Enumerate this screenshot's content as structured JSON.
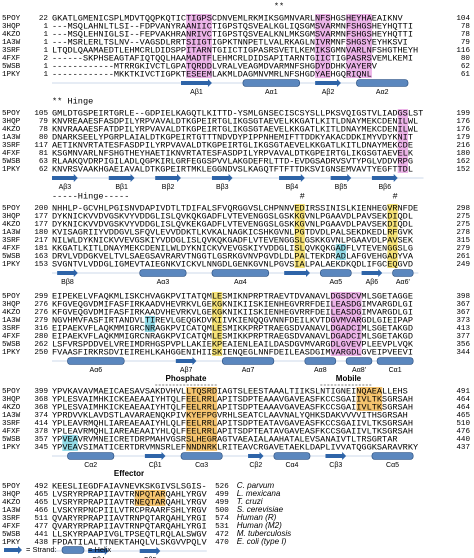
{
  "blocks": [
    {
      "annotations": [
        "**"
      ],
      "rows": [
        {
          "id": "5POY",
          "start": "22",
          "seq": "GKATLGMENICSPLMDVTQQPKQTICTIGPSCDNVEMLRKMIKSGMNVARLNFSHGSHEYHAEAIKNV",
          "end": "104"
        },
        {
          "id": "3HQP",
          "start": "1",
          "seq": "---MSQLAHNLTLSI--FDPVANYRAANIICTIGPSTQSVEALKGLIQSGMSVARMNFSHGSHEYHQTTI",
          "end": "78"
        },
        {
          "id": "4KZO",
          "start": "1",
          "seq": "---MSQLEHNIGLSI--FEPVAKHRANRIVCTIGPSTQSVEALKNLMKSGMSVARMNFSHGSHEYHQTTI",
          "end": "78"
        },
        {
          "id": "1A3W",
          "start": "1",
          "seq": "---MSRLERLTSLNV--VAGSDLRRTSIIGTIGPKTNNPETLVALRKAGLNIVRMNFSHGSYEYHKSVI",
          "end": "79"
        },
        {
          "id": "3SRF",
          "start": "1",
          "seq": "LTQDLQAAMAEDTLEHMCRLDIDSPPITARNTGIICTIGPASRSVETLKEMIKSGMNVARLNFSHGTHEYH",
          "end": "116"
        },
        {
          "id": "4FXF",
          "start": "2",
          "seq": "------SKPHSEAGTAFIQTQQLHAAMADTFLEHMCRLDIDSAPITARNTGIICTIGPASRSVEMLKEMI",
          "end": "80"
        },
        {
          "id": "5WSB",
          "start": "1",
          "seq": "------------MTRRGKIVCTLGPATQRDDLVRALVEAGMDVARMNFSHGDYDDHKVAYERV",
          "end": "62"
        },
        {
          "id": "1PKY",
          "start": "1",
          "seq": "------------MKKTKIVCTIGPKTESEEMLAKMLDAGMNVMRLNFSHGDYAEHGQRIQNL",
          "end": "61"
        }
      ],
      "ss": [
        "Aβ1",
        "Aα1",
        "Aβ2",
        "Aα2"
      ]
    },
    {
      "annotations": [
        "** Hinge"
      ],
      "rows": [
        {
          "id": "5POY",
          "start": "105",
          "seq": "GMLDTGSPEIRTGRLE--GDPIELKAGQTLKITTD-YSMLGNSECISCSYSLLPKSVQIGSTVLIADGSLST",
          "end": "199"
        },
        {
          "id": "3HQP",
          "start": "79",
          "seq": "KNVREAAESFASDPILYRPVAVALDTKGPEIRTGLIKGSGTAEVELKKGATLKITLDNAYMEKCDENILWL",
          "end": "176"
        },
        {
          "id": "4KZO",
          "start": "78",
          "seq": "KNVRAAAESFATDPILYRPVAVALDTKGPEIRTGLIKGSGTAEVELKKGATLKITLDNAYMEKCDENILWL",
          "end": "176"
        },
        {
          "id": "1A3W",
          "start": "80",
          "seq": "DNARKSEELYPGRPLAIALDTKGPEIRTGTTTNDVDYPIPPNHEMIFTTDDKYAKACDDKIMYVDYKNIT",
          "end": "179"
        },
        {
          "id": "3SRF",
          "start": "117",
          "seq": "AETIKNVRTATESFASDPILYRPVAVALDTKGPEIRTGLIKGSGTAEVELKKGATLKITLDNAYMEKCDE",
          "end": "216"
        },
        {
          "id": "4FXF",
          "start": "81",
          "seq": "KSGMNVARLNFSHGTHEYHAETIKNVRTATESFASDPILYRPVAVALDTKGPEIRTGLIKGSGTAEVELK",
          "end": "180"
        },
        {
          "id": "5WSB",
          "start": "63",
          "seq": "RLAAKQVDRPIGILADLQGPKIRLGRFEGGSPVVLAKGDEFRLTTD-EVDGSADRVSVTYPGLVDDVRPG",
          "end": "162"
        },
        {
          "id": "1PKY",
          "start": "62",
          "seq": "KNVRSVAAKHGAEIAVALDTKGPEIRTMKLEGGNDVSLKAGQTFTFTTDKSVIGNSEMVAVTYEGFTTDL",
          "end": "152"
        }
      ],
      "ss": [
        "Aβ3",
        "Bβ1",
        "Bβ2",
        "Bβ3",
        "Bβ4",
        "Bβ5",
        "Bβ6"
      ]
    },
    {
      "annotations": [
        "-----Hinge-----",
        "#",
        "#"
      ],
      "rows": [
        {
          "id": "5POY",
          "start": "200",
          "seq": "NHHLP-GCVHLPGISNVDAPIVDTLTDIFALSFVQRGGVSLCHPNNVEDIRSSINISLKIENHEGVRNFDE",
          "end": "298"
        },
        {
          "id": "3HQP",
          "start": "177",
          "seq": "DYKNICKVVDVGSKVYVDDGLISLQVKQKGADFLVTEVENGGSLGSKKGVNLPGAAVDLPAVSEKDIQDL",
          "end": "275"
        },
        {
          "id": "4KZO",
          "start": "177",
          "seq": "DYKNICKVVDVGSKVYVDDGLISLQVKEKGADFLVTEVENGGSLGSKKGVNLPGAAVDLPAVSEKDIQDL",
          "end": "275"
        },
        {
          "id": "1A3W",
          "start": "180",
          "seq": "KVISAGRIIYVDDGVLSFQVLEVVDDKTLKVKALNAGKICSHKGVNLPGTDVDLPALSEKDKEDLRFGVK",
          "end": "278"
        },
        {
          "id": "3SRF",
          "start": "217",
          "seq": "NILWLDYKNICKVVEVGSKIYVDDGLISLQVKQKGADFLVTEVENGGSLGSKKGVNLPGAAVDLPAVSEK",
          "end": "315"
        },
        {
          "id": "4FXF",
          "start": "181",
          "seq": "KKGATLKITLDNAYMEKCDENILWLDYKNICKVVEVGSKIYVDDGLISLQVKQKGADFLVTEVENGGSLG",
          "end": "279"
        },
        {
          "id": "5WSB",
          "start": "163",
          "seq": "DRVLVDDGKVELTVLSAEGSAVRARVTNGGTLGSRKGVNVPGVDLDLPALTEKDRADLAFGVEHGADYVA",
          "end": "261"
        },
        {
          "id": "1PKY",
          "start": "153",
          "seq": "SVGNTVLVDDGLIGMEVTAIEGNKVICKVLNNGDLGENKGVNLPGVSIALPALAEKDKQDLIFGCEQGVD",
          "end": "249"
        }
      ],
      "ss": [
        "Bβ8",
        "Aα3",
        "Aα4",
        "Aα5",
        "Aβ6",
        "Aα6'"
      ]
    },
    {
      "annotations": [],
      "rows": [
        {
          "id": "5POY",
          "start": "299",
          "seq": "EIPEKELVFAQKMLISKCHVAGKPVITATQMLESMIKNPRPTRAEVTDVANAVLDGSDCVMLSGETAGGE",
          "end": "398"
        },
        {
          "id": "3HQP",
          "start": "276",
          "seq": "KFGVEQGVDMIFASFIRKAADVHEVRKVLGEKGKNIKIISKIENHEGVRRFDEILEASDGIMVARGDLGI",
          "end": "367"
        },
        {
          "id": "4KZO",
          "start": "276",
          "seq": "KFGVEQGVDMIFASFIRKAADVHEVRKVLGEKGKNIKIISKIENHEGVRRFDEILEASDGIMVARGDLGI",
          "end": "367"
        },
        {
          "id": "1A3W",
          "start": "279",
          "seq": "NGVHMVFASFIRTANDVLTIREVLGEQGKDVKIIVKIENQQGVNNFDEILKVTDGVMVARGDLGIEIPAP",
          "end": "373"
        },
        {
          "id": "3SRF",
          "start": "316",
          "seq": "EIPAEKVFLAQKMMIGRCNRAGKPVICATQMLESMIKKPRPTRAEGSDVANAVLDGADCIMLSGETAKGD",
          "end": "413"
        },
        {
          "id": "4FXF",
          "start": "280",
          "seq": "EIPAEKVFLAQKMMIGRCNRAGKPVICATQMLESMIKKPRPTRAEGSDVANAVLDGADCIMLSGETAKGD",
          "end": "377"
        },
        {
          "id": "5WSB",
          "start": "262",
          "seq": "LSFVRSPDDVELVREIMDRHGSPVPLLAKIEKPEAIENLEAILDASDGVMVARGDLGVEVPLEEVPLVQK",
          "end": "356"
        },
        {
          "id": "1PKY",
          "start": "250",
          "seq": "FVAASFIRKRSDVIEIREHLKAHGGENIHIISKIENQEGLNNFDEILEASDGIMVARGDLGVEIPVEEVI",
          "end": "344"
        }
      ],
      "ss": [
        "Aα6",
        "Aβ7",
        "Aα7",
        "Aα8",
        "Aα8'",
        "Cα1"
      ]
    },
    {
      "annotations": [
        "Phosphate",
        "Mobile"
      ],
      "rows": [
        {
          "id": "5POY",
          "start": "399",
          "seq": "YPVKAVAVMAEICAESAVSAKDVHVLLTQSRDIAGTSLEESTAAALTIIKSLNTIGNEINQAEALLEHS",
          "end": "491"
        },
        {
          "id": "3HQP",
          "start": "368",
          "seq": "YPLESVAIMHKICKEAEAAIYHTQLFEELRRLAPITSDPTEAAAVGAVEASFKCCSGAIIVLTKSGRSAH",
          "end": "464"
        },
        {
          "id": "4KZO",
          "start": "368",
          "seq": "YPLESVAIMHKICKEAEAAIYHTQLFEELRRLAPITSDPTEAAAVGAVEASFKCCSGAIIVLTKSGRSAH",
          "end": "464"
        },
        {
          "id": "1A3W",
          "start": "374",
          "seq": "YPRDVVKLAVDSTLAVARAENQKPIVKYEFPGVRHLSEATCLAAVNALYQHKSDAKVVVVITHSGRSAH",
          "end": "465"
        },
        {
          "id": "3SRF",
          "start": "414",
          "seq": "YPLEAVRMQHLIAREAEAAIYHLQLFEELRRLAPITSDPTEATAVGAVEASFKCCSGAIIVLTKSGRSAH",
          "end": "510"
        },
        {
          "id": "4FXF",
          "start": "378",
          "seq": "YPLEAVRMQHLIAREAEAAIYHLQLFEELRRLAPITSDPTEATAVGAVEASFKCCSGAIIVLTKSGRSAH",
          "end": "476"
        },
        {
          "id": "5WSB",
          "start": "357",
          "seq": "YPVEAVRVMNEICRETDRPMAHVGSRSLHEGRAGTVAEAIALAAHATALEVSANAIVTLTRSGRTAR",
          "end": "440"
        },
        {
          "id": "1PKY",
          "start": "345",
          "seq": "YPVEAVSIMATICERTDRVMNSRLEFNNDNRKLRITEAVCRGAVETAEKLDAPLIVVATQGGKSARAVRKY",
          "end": "437"
        }
      ],
      "ss": [
        "Cα2",
        "Cβ1",
        "Cα3",
        "Cβ2",
        "Cα4",
        "Cβ3",
        "Cα5"
      ]
    },
    {
      "annotations": [
        "Effector"
      ],
      "rows": [
        {
          "id": "5POY",
          "start": "492",
          "seq": "KEESLIEGDFAIAVNEVKSKGIVSLSGIS-",
          "end": "526",
          "species": "C. parvum"
        },
        {
          "id": "3HQP",
          "start": "465",
          "seq": "LVSRYRPRAPIIAVTRNPQTARQAHLYRGV",
          "end": "499",
          "species": "L. mexicana"
        },
        {
          "id": "4KZO",
          "start": "465",
          "seq": "LVSRYRPRAPIIAVTRNEQTARQAHLYRGV",
          "end": "499",
          "species": "T. cruzi"
        },
        {
          "id": "1A3W",
          "start": "466",
          "seq": "LVSKYRPNCPIILVTRCPRAARFSHLYRGV",
          "end": "500",
          "species": "S. cerevisiae"
        },
        {
          "id": "3SRF",
          "start": "511",
          "seq": "QVARYRPRAPIIAVTRNPQTARQAHLYRGI",
          "end": "574",
          "species": "Human (R)"
        },
        {
          "id": "4FXF",
          "start": "477",
          "seq": "QVARYRPRAPIIAVTRNPQTARQAHLYRGI",
          "end": "531",
          "species": "Human (M2)"
        },
        {
          "id": "5WSB",
          "start": "441",
          "seq": "LLSKYRPAAPIVGLTPSEQTLRQLALSWGV",
          "end": "472",
          "species": "M. tuberculosis"
        },
        {
          "id": "1PKY",
          "start": "438",
          "seq": "FPDATILALTTNEKTAHQLVLSKGVVPQLV",
          "end": "470",
          "species": "E. coli (type I)"
        }
      ],
      "ss": [
        "Cβ4",
        "Cβ5"
      ]
    }
  ],
  "legend": {
    "strand": "= Strand:",
    "helix": "= Helix"
  }
}
